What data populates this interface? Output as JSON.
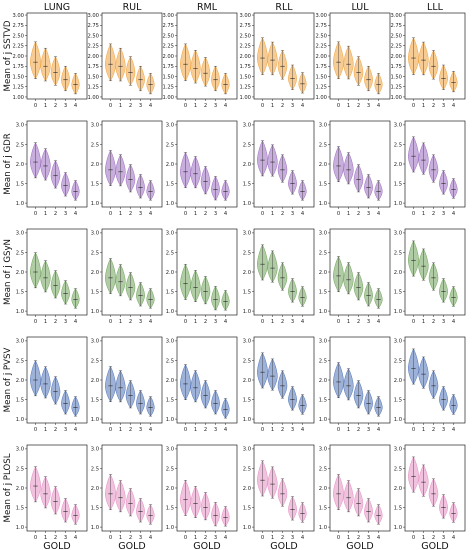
{
  "chart_data": {
    "type": "violin",
    "columns": [
      "LUNG",
      "RUL",
      "RML",
      "RLL",
      "LUL",
      "LLL"
    ],
    "rows": [
      {
        "ylabel": "Mean of j SSTVD",
        "color": "#f0a23c",
        "ylim": [
          0.95,
          3.05
        ],
        "yticks": [
          "1.00",
          "1.25",
          "1.50",
          "1.75",
          "2.00",
          "2.25",
          "2.50",
          "2.75",
          "3.00"
        ],
        "yticks_values": [
          1.0,
          1.25,
          1.5,
          1.75,
          2.0,
          2.25,
          2.5,
          2.75,
          3.0
        ],
        "medians": [
          [
            1.85,
            1.75,
            1.6,
            1.42,
            1.3
          ],
          [
            1.8,
            1.75,
            1.6,
            1.42,
            1.3
          ],
          [
            1.8,
            1.7,
            1.58,
            1.42,
            1.3
          ],
          [
            1.95,
            1.9,
            1.75,
            1.45,
            1.32
          ],
          [
            1.85,
            1.8,
            1.6,
            1.42,
            1.3
          ],
          [
            1.95,
            1.9,
            1.75,
            1.45,
            1.35
          ]
        ]
      },
      {
        "ylabel": "Mean of j GDR",
        "color": "#9b6cc0",
        "ylim": [
          0.9,
          3.1
        ],
        "yticks": [
          "1.0",
          "1.5",
          "2.0",
          "2.5",
          "3.0"
        ],
        "yticks_values": [
          1.0,
          1.5,
          2.0,
          2.5,
          3.0
        ],
        "medians": [
          [
            2.05,
            1.95,
            1.7,
            1.45,
            1.3
          ],
          [
            1.85,
            1.8,
            1.6,
            1.4,
            1.3
          ],
          [
            1.8,
            1.75,
            1.55,
            1.35,
            1.3
          ],
          [
            2.1,
            2.05,
            1.85,
            1.5,
            1.3
          ],
          [
            1.95,
            1.85,
            1.6,
            1.4,
            1.3
          ],
          [
            2.2,
            2.1,
            1.85,
            1.5,
            1.35
          ]
        ]
      },
      {
        "ylabel": "Mean of j GSyN",
        "color": "#6fa35a",
        "ylim": [
          0.9,
          3.1
        ],
        "yticks": [
          "1.0",
          "1.5",
          "2.0",
          "2.5",
          "3.0"
        ],
        "yticks_values": [
          1.0,
          1.5,
          2.0,
          2.5,
          3.0
        ],
        "medians": [
          [
            2.0,
            1.85,
            1.65,
            1.45,
            1.3
          ],
          [
            1.85,
            1.75,
            1.6,
            1.4,
            1.3
          ],
          [
            1.7,
            1.6,
            1.5,
            1.3,
            1.25
          ],
          [
            2.2,
            2.1,
            1.85,
            1.5,
            1.35
          ],
          [
            1.9,
            1.8,
            1.6,
            1.4,
            1.3
          ],
          [
            2.3,
            2.15,
            1.85,
            1.5,
            1.35
          ]
        ]
      },
      {
        "ylabel": "Mean of j PVSV",
        "color": "#4f73b8",
        "ylim": [
          0.9,
          3.1
        ],
        "yticks": [
          "1.0",
          "1.5",
          "2.0",
          "2.5",
          "3.0"
        ],
        "yticks_values": [
          1.0,
          1.5,
          2.0,
          2.5,
          3.0
        ],
        "medians": [
          [
            2.0,
            1.9,
            1.7,
            1.4,
            1.3
          ],
          [
            1.85,
            1.8,
            1.6,
            1.4,
            1.3
          ],
          [
            1.9,
            1.8,
            1.6,
            1.4,
            1.25
          ],
          [
            2.2,
            2.1,
            1.85,
            1.5,
            1.35
          ],
          [
            1.95,
            1.85,
            1.6,
            1.4,
            1.3
          ],
          [
            2.3,
            2.15,
            1.85,
            1.5,
            1.35
          ]
        ]
      },
      {
        "ylabel": "Mean of j PLOSL",
        "color": "#e48fc3",
        "ylim": [
          0.9,
          3.1
        ],
        "yticks": [
          "1.0",
          "1.5",
          "2.0",
          "2.5",
          "3.0"
        ],
        "yticks_values": [
          1.0,
          1.5,
          2.0,
          2.5,
          3.0
        ],
        "medians": [
          [
            2.05,
            1.85,
            1.65,
            1.4,
            1.3
          ],
          [
            1.85,
            1.75,
            1.6,
            1.4,
            1.3
          ],
          [
            1.7,
            1.6,
            1.5,
            1.3,
            1.25
          ],
          [
            2.2,
            2.1,
            1.85,
            1.45,
            1.35
          ],
          [
            1.85,
            1.75,
            1.6,
            1.4,
            1.3
          ],
          [
            2.3,
            2.15,
            1.85,
            1.5,
            1.35
          ]
        ]
      }
    ],
    "categories": [
      "0",
      "1",
      "2",
      "3",
      "4"
    ],
    "xlabel": "GOLD"
  }
}
